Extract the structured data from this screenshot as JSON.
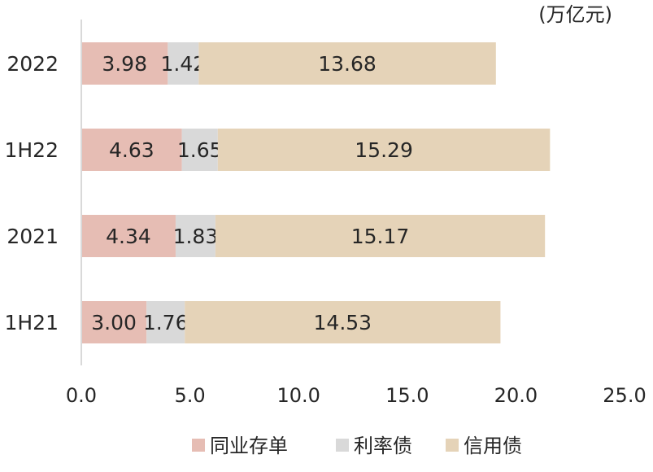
{
  "chart_data": {
    "type": "bar",
    "orientation": "horizontal",
    "stacked": true,
    "unit_label": "(万亿元)",
    "categories": [
      "2022",
      "1H22",
      "2021",
      "1H21"
    ],
    "series": [
      {
        "name": "同业存单",
        "color": "#e6bdb4",
        "values": [
          3.98,
          4.63,
          4.34,
          3.0
        ]
      },
      {
        "name": "利率债",
        "color": "#d9d9d9",
        "values": [
          1.42,
          1.65,
          1.83,
          1.76
        ]
      },
      {
        "name": "信用债",
        "color": "#e5d3b8",
        "values": [
          13.68,
          15.29,
          15.17,
          14.53
        ]
      }
    ],
    "value_labels": [
      [
        "3.98",
        "1.42",
        "13.68"
      ],
      [
        "4.63",
        "1.65",
        "15.29"
      ],
      [
        "4.34",
        "1.83",
        "15.17"
      ],
      [
        "3.00",
        "1.76",
        "14.53"
      ]
    ],
    "xlim": [
      0,
      25
    ],
    "xticks": [
      "0.0",
      "5.0",
      "10.0",
      "15.0",
      "20.0",
      "25.0"
    ],
    "grid": false,
    "legend_position": "bottom"
  }
}
